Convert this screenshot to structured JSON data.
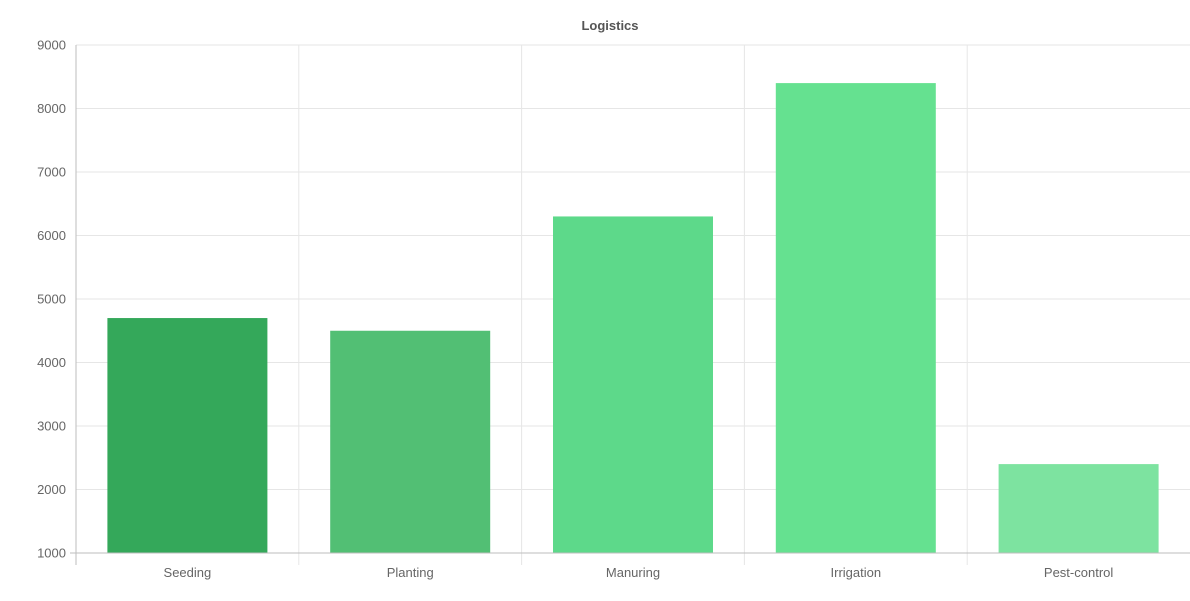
{
  "chart_data": {
    "type": "bar",
    "title": "Logistics",
    "xlabel": "",
    "ylabel": "",
    "categories": [
      "Seeding",
      "Planting",
      "Manuring",
      "Irrigation",
      "Pest-control"
    ],
    "values": [
      4700,
      4500,
      6300,
      8400,
      2400
    ],
    "ylim": [
      1000,
      9000
    ],
    "yticks": [
      "1000",
      "2000",
      "3000",
      "4000",
      "5000",
      "6000",
      "7000",
      "8000",
      "9000"
    ],
    "grid": true,
    "legend": "none",
    "bar_colors": [
      "#34a85a",
      "#52bf74",
      "#5dd98a",
      "#65e190",
      "#7de3a0"
    ]
  }
}
